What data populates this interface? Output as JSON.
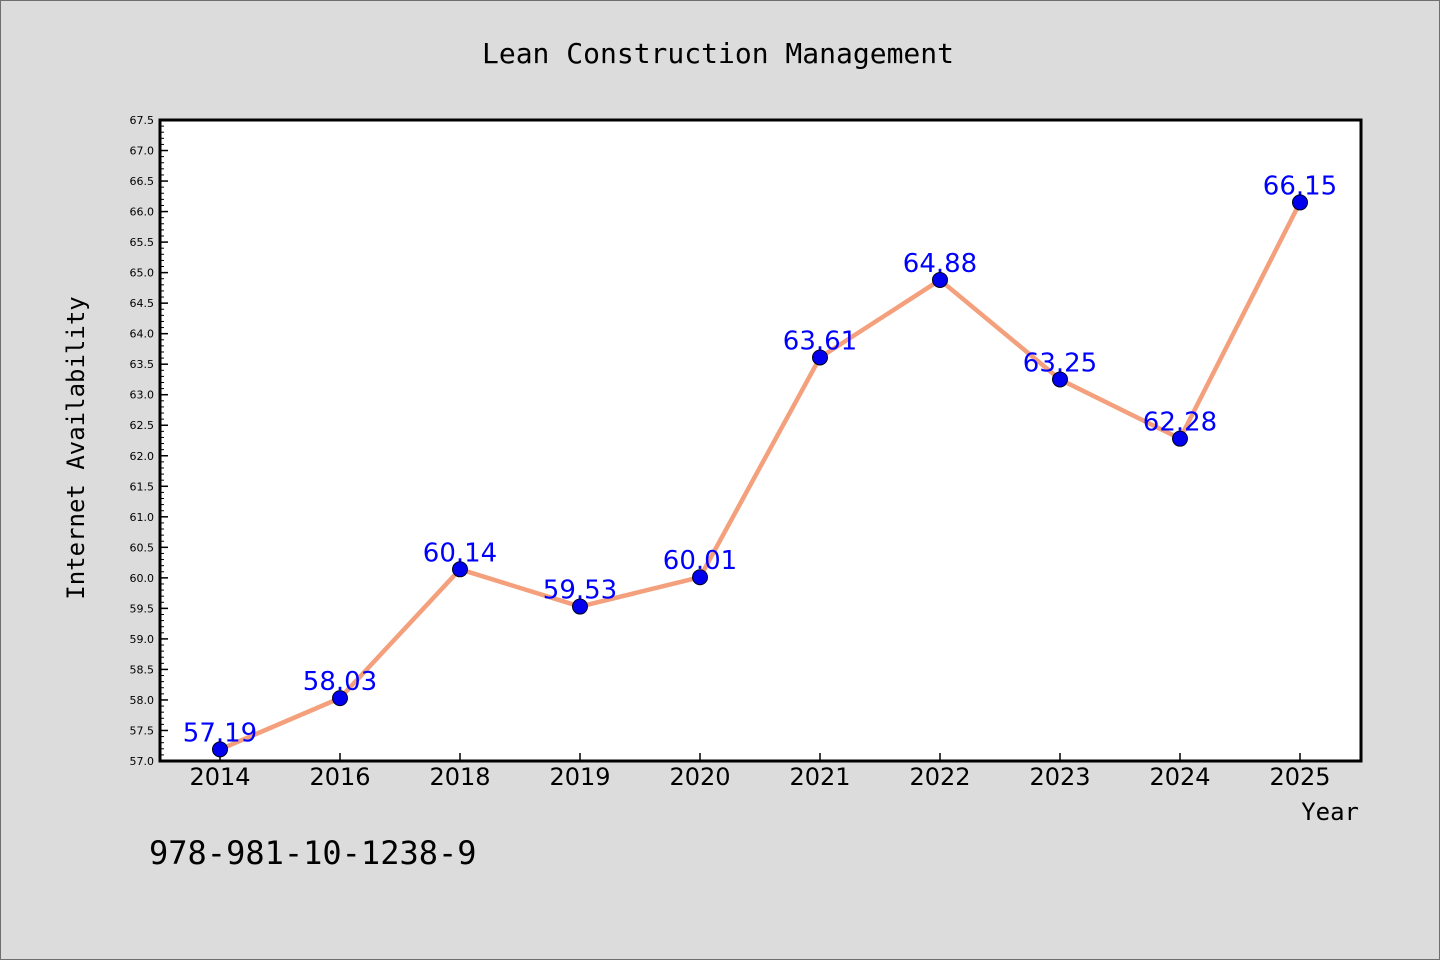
{
  "chart_data": {
    "type": "line",
    "title": "Lean Construction Management",
    "xlabel": "Year",
    "ylabel": "Internet Availability",
    "categories": [
      "2014",
      "2016",
      "2018",
      "2019",
      "2020",
      "2021",
      "2022",
      "2023",
      "2024",
      "2025"
    ],
    "series": [
      {
        "values": [
          57.19,
          58.03,
          60.14,
          59.53,
          60.01,
          63.61,
          64.88,
          63.25,
          62.28,
          66.15
        ],
        "labels": [
          "57.19",
          "58.03",
          "60.14",
          "59.53",
          "60.01",
          "63.61",
          "64.88",
          "63.25",
          "62.28",
          "66.15"
        ]
      }
    ],
    "ylim": [
      57.0,
      67.5
    ],
    "yticks": [
      "57.0",
      "57.5",
      "58.0",
      "58.5",
      "59.0",
      "59.5",
      "60.0",
      "60.5",
      "61.0",
      "61.5",
      "62.0",
      "62.5",
      "63.0",
      "63.5",
      "64.0",
      "64.5",
      "65.0",
      "65.5",
      "66.0",
      "66.5",
      "67.0",
      "67.5"
    ],
    "grid": false,
    "line_color": "#f4a07c",
    "marker_color": "#0000ee",
    "label_color": "#0000ff",
    "background_color": "#dcdcdc",
    "plot_background_color": "#ffffff"
  },
  "footer": {
    "isbn": "978-981-10-1238-9"
  }
}
